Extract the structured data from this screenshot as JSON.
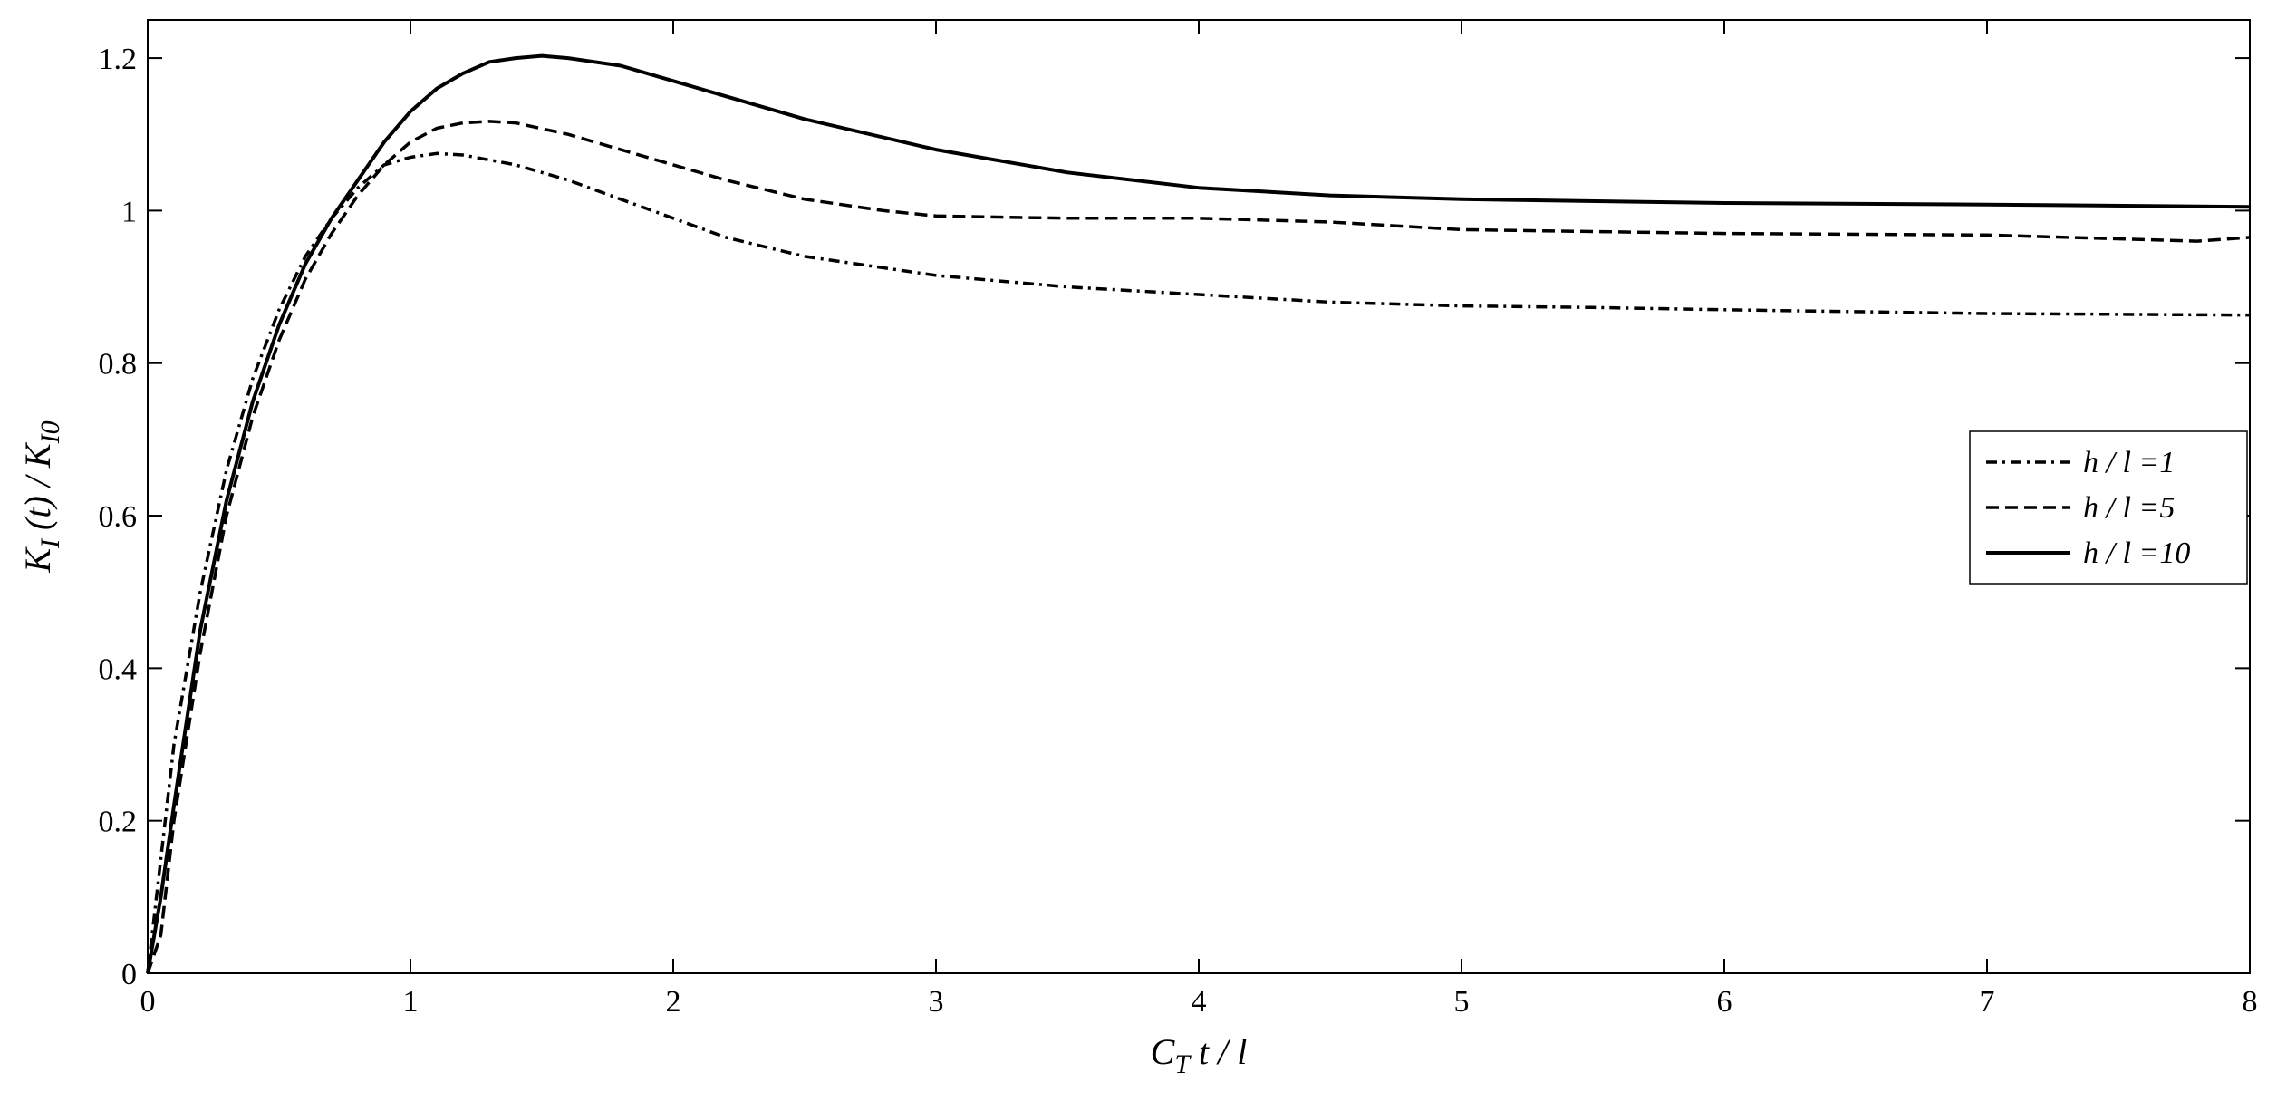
{
  "chart_data": {
    "type": "line",
    "title": "",
    "xlabel": {
      "main": "C",
      "sub": "T",
      "rest": " t / l"
    },
    "ylabel": {
      "main": "K",
      "sub": "I",
      "mid": " (t) / K",
      "sub2": "I0"
    },
    "xlim": [
      0,
      8
    ],
    "ylim": [
      0,
      1.25
    ],
    "xticks": [
      0,
      1,
      2,
      3,
      4,
      5,
      6,
      7,
      8
    ],
    "yticks": [
      0,
      0.2,
      0.4,
      0.6,
      0.8,
      1,
      1.2
    ],
    "xtick_labels": [
      "0",
      "1",
      "2",
      "3",
      "4",
      "5",
      "6",
      "7",
      "8"
    ],
    "ytick_labels": [
      "0",
      "0.2",
      "0.4",
      "0.6",
      "0.8",
      "1",
      "1.2"
    ],
    "grid": false,
    "legend_position": "right",
    "series": [
      {
        "name": "h / l =1",
        "style": "dashdot",
        "x": [
          0,
          0.05,
          0.1,
          0.2,
          0.3,
          0.4,
          0.5,
          0.6,
          0.7,
          0.8,
          0.9,
          1.0,
          1.1,
          1.2,
          1.4,
          1.6,
          1.8,
          2.0,
          2.2,
          2.5,
          3.0,
          3.5,
          4.0,
          4.5,
          5.0,
          5.5,
          6.0,
          7.0,
          8.0
        ],
        "y": [
          0,
          0.15,
          0.3,
          0.5,
          0.66,
          0.78,
          0.87,
          0.94,
          0.99,
          1.03,
          1.06,
          1.07,
          1.075,
          1.073,
          1.06,
          1.04,
          1.015,
          0.99,
          0.965,
          0.94,
          0.915,
          0.9,
          0.89,
          0.88,
          0.875,
          0.873,
          0.87,
          0.865,
          0.863
        ]
      },
      {
        "name": "h / l =5",
        "style": "dashed",
        "x": [
          0,
          0.05,
          0.1,
          0.2,
          0.3,
          0.4,
          0.5,
          0.6,
          0.7,
          0.8,
          0.9,
          1.0,
          1.1,
          1.2,
          1.3,
          1.4,
          1.6,
          1.8,
          2.0,
          2.2,
          2.5,
          2.8,
          3.0,
          3.5,
          4.0,
          4.5,
          5.0,
          6.0,
          7.0,
          7.8,
          8.0
        ],
        "y": [
          0,
          0.05,
          0.2,
          0.42,
          0.6,
          0.73,
          0.83,
          0.91,
          0.97,
          1.02,
          1.06,
          1.09,
          1.108,
          1.115,
          1.117,
          1.115,
          1.1,
          1.08,
          1.06,
          1.04,
          1.015,
          1.0,
          0.993,
          0.99,
          0.99,
          0.985,
          0.975,
          0.97,
          0.968,
          0.96,
          0.965
        ]
      },
      {
        "name": "h / l =10",
        "style": "solid",
        "x": [
          0,
          0.05,
          0.1,
          0.2,
          0.3,
          0.4,
          0.5,
          0.6,
          0.7,
          0.8,
          0.9,
          1.0,
          1.1,
          1.2,
          1.3,
          1.4,
          1.5,
          1.6,
          1.8,
          2.0,
          2.2,
          2.5,
          3.0,
          3.5,
          4.0,
          4.5,
          5.0,
          6.0,
          7.0,
          8.0
        ],
        "y": [
          0,
          0.1,
          0.22,
          0.45,
          0.62,
          0.75,
          0.85,
          0.93,
          0.99,
          1.04,
          1.09,
          1.13,
          1.16,
          1.18,
          1.195,
          1.2,
          1.203,
          1.2,
          1.19,
          1.17,
          1.15,
          1.12,
          1.08,
          1.05,
          1.03,
          1.02,
          1.015,
          1.01,
          1.008,
          1.005
        ]
      }
    ]
  }
}
